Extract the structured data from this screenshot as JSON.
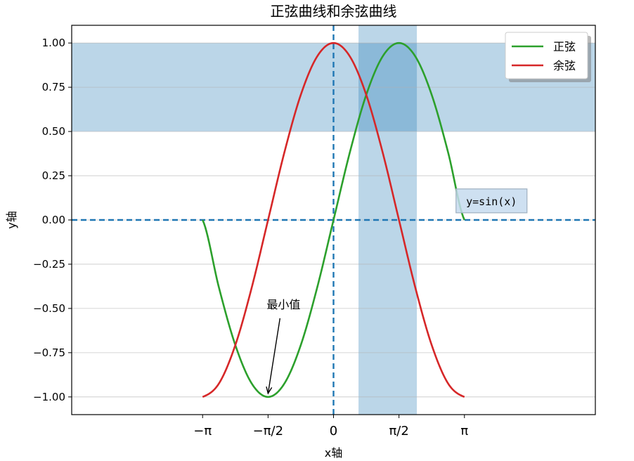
{
  "chart_data": {
    "type": "line",
    "title": "正弦曲线和余弦曲线",
    "xlabel": "x轴",
    "ylabel": "y轴",
    "xlim": [
      -6.283,
      6.283
    ],
    "ylim": [
      -1.1,
      1.1
    ],
    "xticks": [
      {
        "value": -3.14159,
        "label": "−π"
      },
      {
        "value": -1.5708,
        "label": "−π/2"
      },
      {
        "value": 0,
        "label": "0"
      },
      {
        "value": 1.5708,
        "label": "π/2"
      },
      {
        "value": 3.14159,
        "label": "π"
      }
    ],
    "yticks": [
      {
        "value": 1.0,
        "label": "1.00"
      },
      {
        "value": 0.75,
        "label": "0.75"
      },
      {
        "value": 0.5,
        "label": "0.50"
      },
      {
        "value": 0.25,
        "label": "0.25"
      },
      {
        "value": 0.0,
        "label": "0.00"
      },
      {
        "value": -0.25,
        "label": "−0.25"
      },
      {
        "value": -0.5,
        "label": "−0.50"
      },
      {
        "value": -0.75,
        "label": "−0.75"
      },
      {
        "value": -1.0,
        "label": "−1.00"
      }
    ],
    "grid": "horizontal",
    "series": [
      {
        "name": "正弦",
        "color": "#2ca02c",
        "x": [
          -3.1416,
          -2.7489,
          -2.3562,
          -1.9635,
          -1.5708,
          -1.1781,
          -0.7854,
          -0.3927,
          0,
          0.3927,
          0.7854,
          1.1781,
          1.5708,
          1.9635,
          2.3562,
          2.7489,
          3.1416
        ],
        "y": [
          0,
          -0.3827,
          -0.7071,
          -0.9239,
          -1,
          -0.9239,
          -0.7071,
          -0.3827,
          0,
          0.3827,
          0.7071,
          0.9239,
          1,
          0.9239,
          0.7071,
          0.3827,
          0
        ]
      },
      {
        "name": "余弦",
        "color": "#d62728",
        "x": [
          -3.1416,
          -2.7489,
          -2.3562,
          -1.9635,
          -1.5708,
          -1.1781,
          -0.7854,
          -0.3927,
          0,
          0.3927,
          0.7854,
          1.1781,
          1.5708,
          1.9635,
          2.3562,
          2.7489,
          3.1416
        ],
        "y": [
          -1,
          -0.9239,
          -0.7071,
          -0.3827,
          0,
          0.3827,
          0.7071,
          0.9239,
          1,
          0.9239,
          0.7071,
          0.3827,
          0,
          -0.3827,
          -0.7071,
          -0.9239,
          -1
        ]
      }
    ],
    "reference_lines": [
      {
        "orientation": "horizontal",
        "value": 0,
        "style": "dashed",
        "color": "#1f77b4"
      },
      {
        "orientation": "vertical",
        "value": 0,
        "style": "dashed",
        "color": "#1f77b4"
      }
    ],
    "spans": [
      {
        "orientation": "horizontal",
        "from": 0.5,
        "to": 1.0,
        "color": "#1f77b4",
        "opacity": 0.3
      },
      {
        "orientation": "vertical",
        "from": 0.6,
        "to": 2.0,
        "color": "#1f77b4",
        "opacity": 0.3
      }
    ],
    "annotations": [
      {
        "text": "最小值",
        "x": -1.5708,
        "y": -1.0,
        "text_x": -1.2,
        "text_y": -0.5
      }
    ],
    "text_box": {
      "text": "y=sin(x)",
      "x": 3.1416,
      "y": 0.1
    },
    "legend": {
      "position": "top-right",
      "shadow": true
    }
  }
}
